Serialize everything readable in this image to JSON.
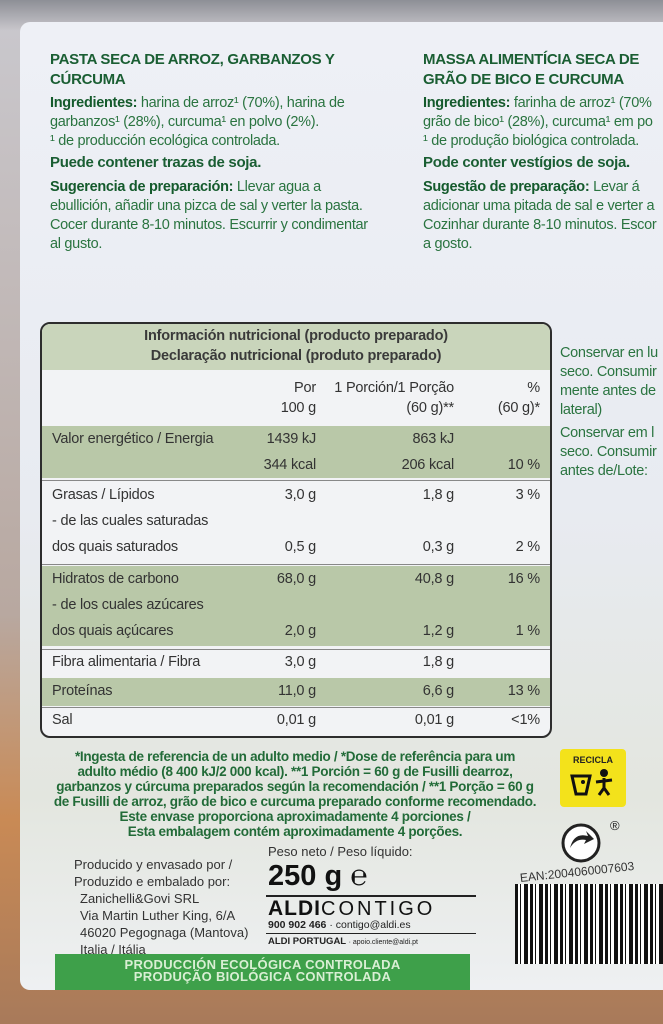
{
  "es": {
    "title_1": "PASTA SECA DE ARROZ, GARBANZOS Y",
    "title_2": "CÚRCUMA",
    "ing_label": "Ingredientes:",
    "ing_1": " harina de arroz¹ (70%), harina de",
    "ing_2": "garbanzos¹ (28%), curcuma¹ en polvo (2%).",
    "ing_3": "¹ de producción ecológica controlada.",
    "allergen": "Puede contener trazas de soja.",
    "prep_label": "Sugerencia de preparación:",
    "prep_1": " Llevar agua a",
    "prep_2": "ebullición, añadir una pizca de sal y verter la pasta.",
    "prep_3": "Cocer durante 8-10 minutos.  Escurrir y condimentar",
    "prep_4": "al gusto."
  },
  "pt": {
    "title_1": "MASSA ALIMENTÍCIA SECA DE",
    "title_2": "GRÃO DE BICO E CURCUMA",
    "ing_label": "Ingredientes:",
    "ing_1": " farinha de arroz¹ (70%",
    "ing_2": "grão de bico¹ (28%), curcuma¹ em po",
    "ing_3": "¹ de produção biológica controlada.",
    "allergen": "Pode conter vestígios de soja.",
    "prep_label": "Sugestão de preparação:",
    "prep_1": " Levar á",
    "prep_2": "adicionar uma pitada de sal e verter a",
    "prep_3": "Cozinhar durante 8-10 minutos. Escor",
    "prep_4": "a gosto."
  },
  "storage": {
    "es_1": "Conservar en lu",
    "es_2": "seco. Consumir",
    "es_3": "mente antes de",
    "es_4": "lateral)",
    "pt_1": "Conservar em l",
    "pt_2": "seco. Consumir",
    "pt_3": "antes de/Lote:"
  },
  "nutrition": {
    "title_es": "Información nutricional (producto preparado)",
    "title_pt": "Declaração nutricional (produto preparado)",
    "col_100_1": "Por",
    "col_100_2": "100 g",
    "col_portion_1": "1 Porción/1 Porção",
    "col_portion_2": "(60 g)**",
    "col_pct_1": "%",
    "col_pct_2": "(60 g)*",
    "rows": [
      {
        "label": "Valor energético / Energia",
        "per100": "1439 kJ",
        "portion": "863 kJ",
        "pct": ""
      },
      {
        "label": "",
        "per100": "344 kcal",
        "portion": "206 kcal",
        "pct": "10 %"
      },
      {
        "label": "Grasas / Lípidos",
        "per100": "3,0 g",
        "portion": "1,8 g",
        "pct": "3 %"
      },
      {
        "label": "- de las cuales saturadas",
        "per100": "",
        "portion": "",
        "pct": ""
      },
      {
        "label": "dos quais saturados",
        "per100": "0,5 g",
        "portion": "0,3 g",
        "pct": "2 %"
      },
      {
        "label": "Hidratos de carbono",
        "per100": "68,0 g",
        "portion": "40,8 g",
        "pct": "16 %"
      },
      {
        "label": "- de los cuales azúcares",
        "per100": "",
        "portion": "",
        "pct": ""
      },
      {
        "label": "dos quais açúcares",
        "per100": "2,0 g",
        "portion": "1,2 g",
        "pct": "1 %"
      },
      {
        "label": "Fibra alimentaria / Fibra",
        "per100": "3,0 g",
        "portion": "1,8 g",
        "pct": ""
      },
      {
        "label": "Proteínas",
        "per100": "11,0 g",
        "portion": "6,6 g",
        "pct": "13 %"
      },
      {
        "label": "Sal",
        "per100": "0,01 g",
        "portion": "0,01 g",
        "pct": "<1%"
      }
    ]
  },
  "footnotes": [
    "*Ingesta de referencia de un adulto medio / *Dose de referência para um",
    "adulto médio (8 400 kJ/2 000 kcal). **1 Porción = 60 g de Fusilli dearroz,",
    "garbanzos y cúrcuma preparados según la recomendación / **1 Porção = 60 g",
    "de Fusilli de arroz, grão de bico e curcuma preparado conforme recomendado.",
    "Este envase proporciona aproximadamente 4 porciones /",
    "Esta embalagem contém aproximadamente 4 porções."
  ],
  "producer": [
    "Producido y envasado por /",
    "Produzido e embalado por:",
    "Zanichelli&Govi SRL",
    "Via Martin Luther King, 6/A",
    "46020 Pegognaga (Mantova)",
    "Italia / Itália"
  ],
  "weight": {
    "label": "Peso neto / Peso líquido:",
    "value": "250 g",
    "estimated_mark": "℮"
  },
  "aldi": {
    "brand": "ALDI",
    "contigo": "CONTIGO",
    "phone": "900 902 466",
    "email": "· contigo@aldi.es",
    "pt": "ALDI PORTUGAL",
    "pt_email": "· apoio.cliente@aldi.pt"
  },
  "eco_band": {
    "es": "PRODUCCIÓN ECOLÓGICA CONTROLADA",
    "pt": "PRODUÇÃO BIOLÓGICA CONTROLADA"
  },
  "recycle": {
    "label": "RECICLA",
    "registered": "®"
  },
  "ean": "EAN:2004060007603",
  "colors": {
    "text_green": "#1e6b3a",
    "table_shade": "#b9c8a8",
    "band_green": "#3ea04a",
    "recicla_yellow": "#f3e21b"
  }
}
